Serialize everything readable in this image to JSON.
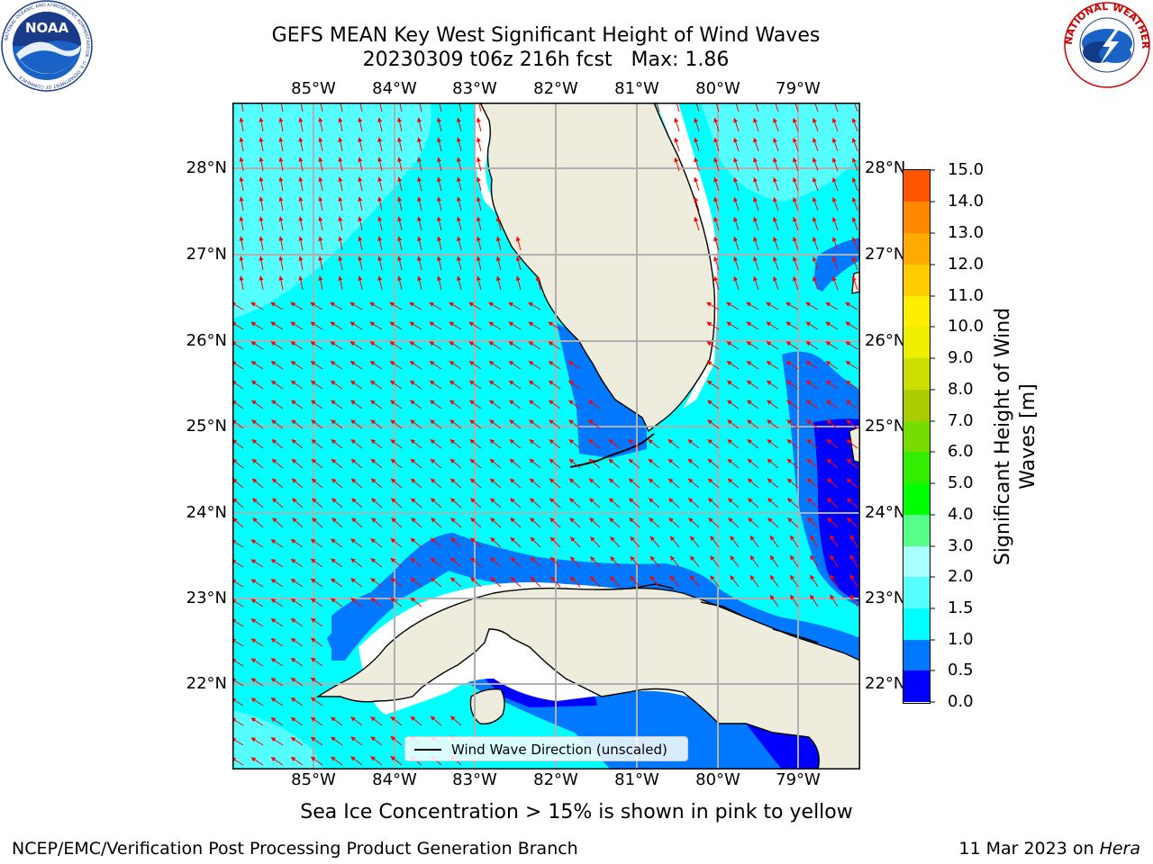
{
  "title_line1": "GEFS MEAN Key West Significant Height of Wind Waves",
  "title_line2": "20230309 t06z 216h fcst   Max: 1.86",
  "x_ticks": [
    "85°W",
    "84°W",
    "83°W",
    "82°W",
    "81°W",
    "80°W",
    "79°W"
  ],
  "y_ticks": [
    "28°N",
    "27°N",
    "26°N",
    "25°N",
    "24°N",
    "23°N",
    "22°N"
  ],
  "legend_label": "Wind Wave Direction (unscaled)",
  "colorbar": {
    "label": "Significant Height of Wind Waves [m]",
    "label_line1": "Significant Height of Wind",
    "label_line2": "Waves [m]",
    "ticks": [
      "15.0",
      "14.0",
      "13.0",
      "12.0",
      "11.0",
      "10.0",
      "9.0",
      "8.0",
      "7.0",
      "6.0",
      "5.0",
      "4.0",
      "3.0",
      "2.0",
      "1.5",
      "1.0",
      "0.5",
      "0.0"
    ],
    "colors_bottom_to_top": [
      "#0000ff",
      "#0078ff",
      "#00ffff",
      "#55ffff",
      "#aaffff",
      "#55ff88",
      "#00ff00",
      "#33ee00",
      "#77dd00",
      "#aacc00",
      "#ccdd00",
      "#eeee00",
      "#ffee00",
      "#ffcc00",
      "#ffaa00",
      "#ff8800",
      "#ff5500",
      "#ff2200",
      "#ff0000"
    ]
  },
  "ice_note": "Sea Ice Concentration > 15% is shown in pink to yellow",
  "footer_left": "NCEP/EMC/Verification Post Processing Product Generation Branch",
  "footer_right_date": "11 Mar 2023 on ",
  "footer_right_host": "Hera",
  "logos": {
    "noaa_text": "NOAA",
    "noaa_ring_text": "NATIONAL OCEANIC AND ATMOSPHERIC ADMINISTRATION · U.S. DEPARTMENT OF COMMERCE",
    "nws_ring_text": "NATIONAL WEATHER SERVICE"
  },
  "colors": {
    "land": "#eeecdc",
    "wave_0_5_1_0": "#0078ff",
    "wave_0_0_0_5": "#0000ff",
    "wave_1_0_1_5": "#00ffff",
    "wave_1_5_2_0": "#55ffff",
    "arrow": "#ff0000",
    "grid": "#b0b0b0"
  }
}
